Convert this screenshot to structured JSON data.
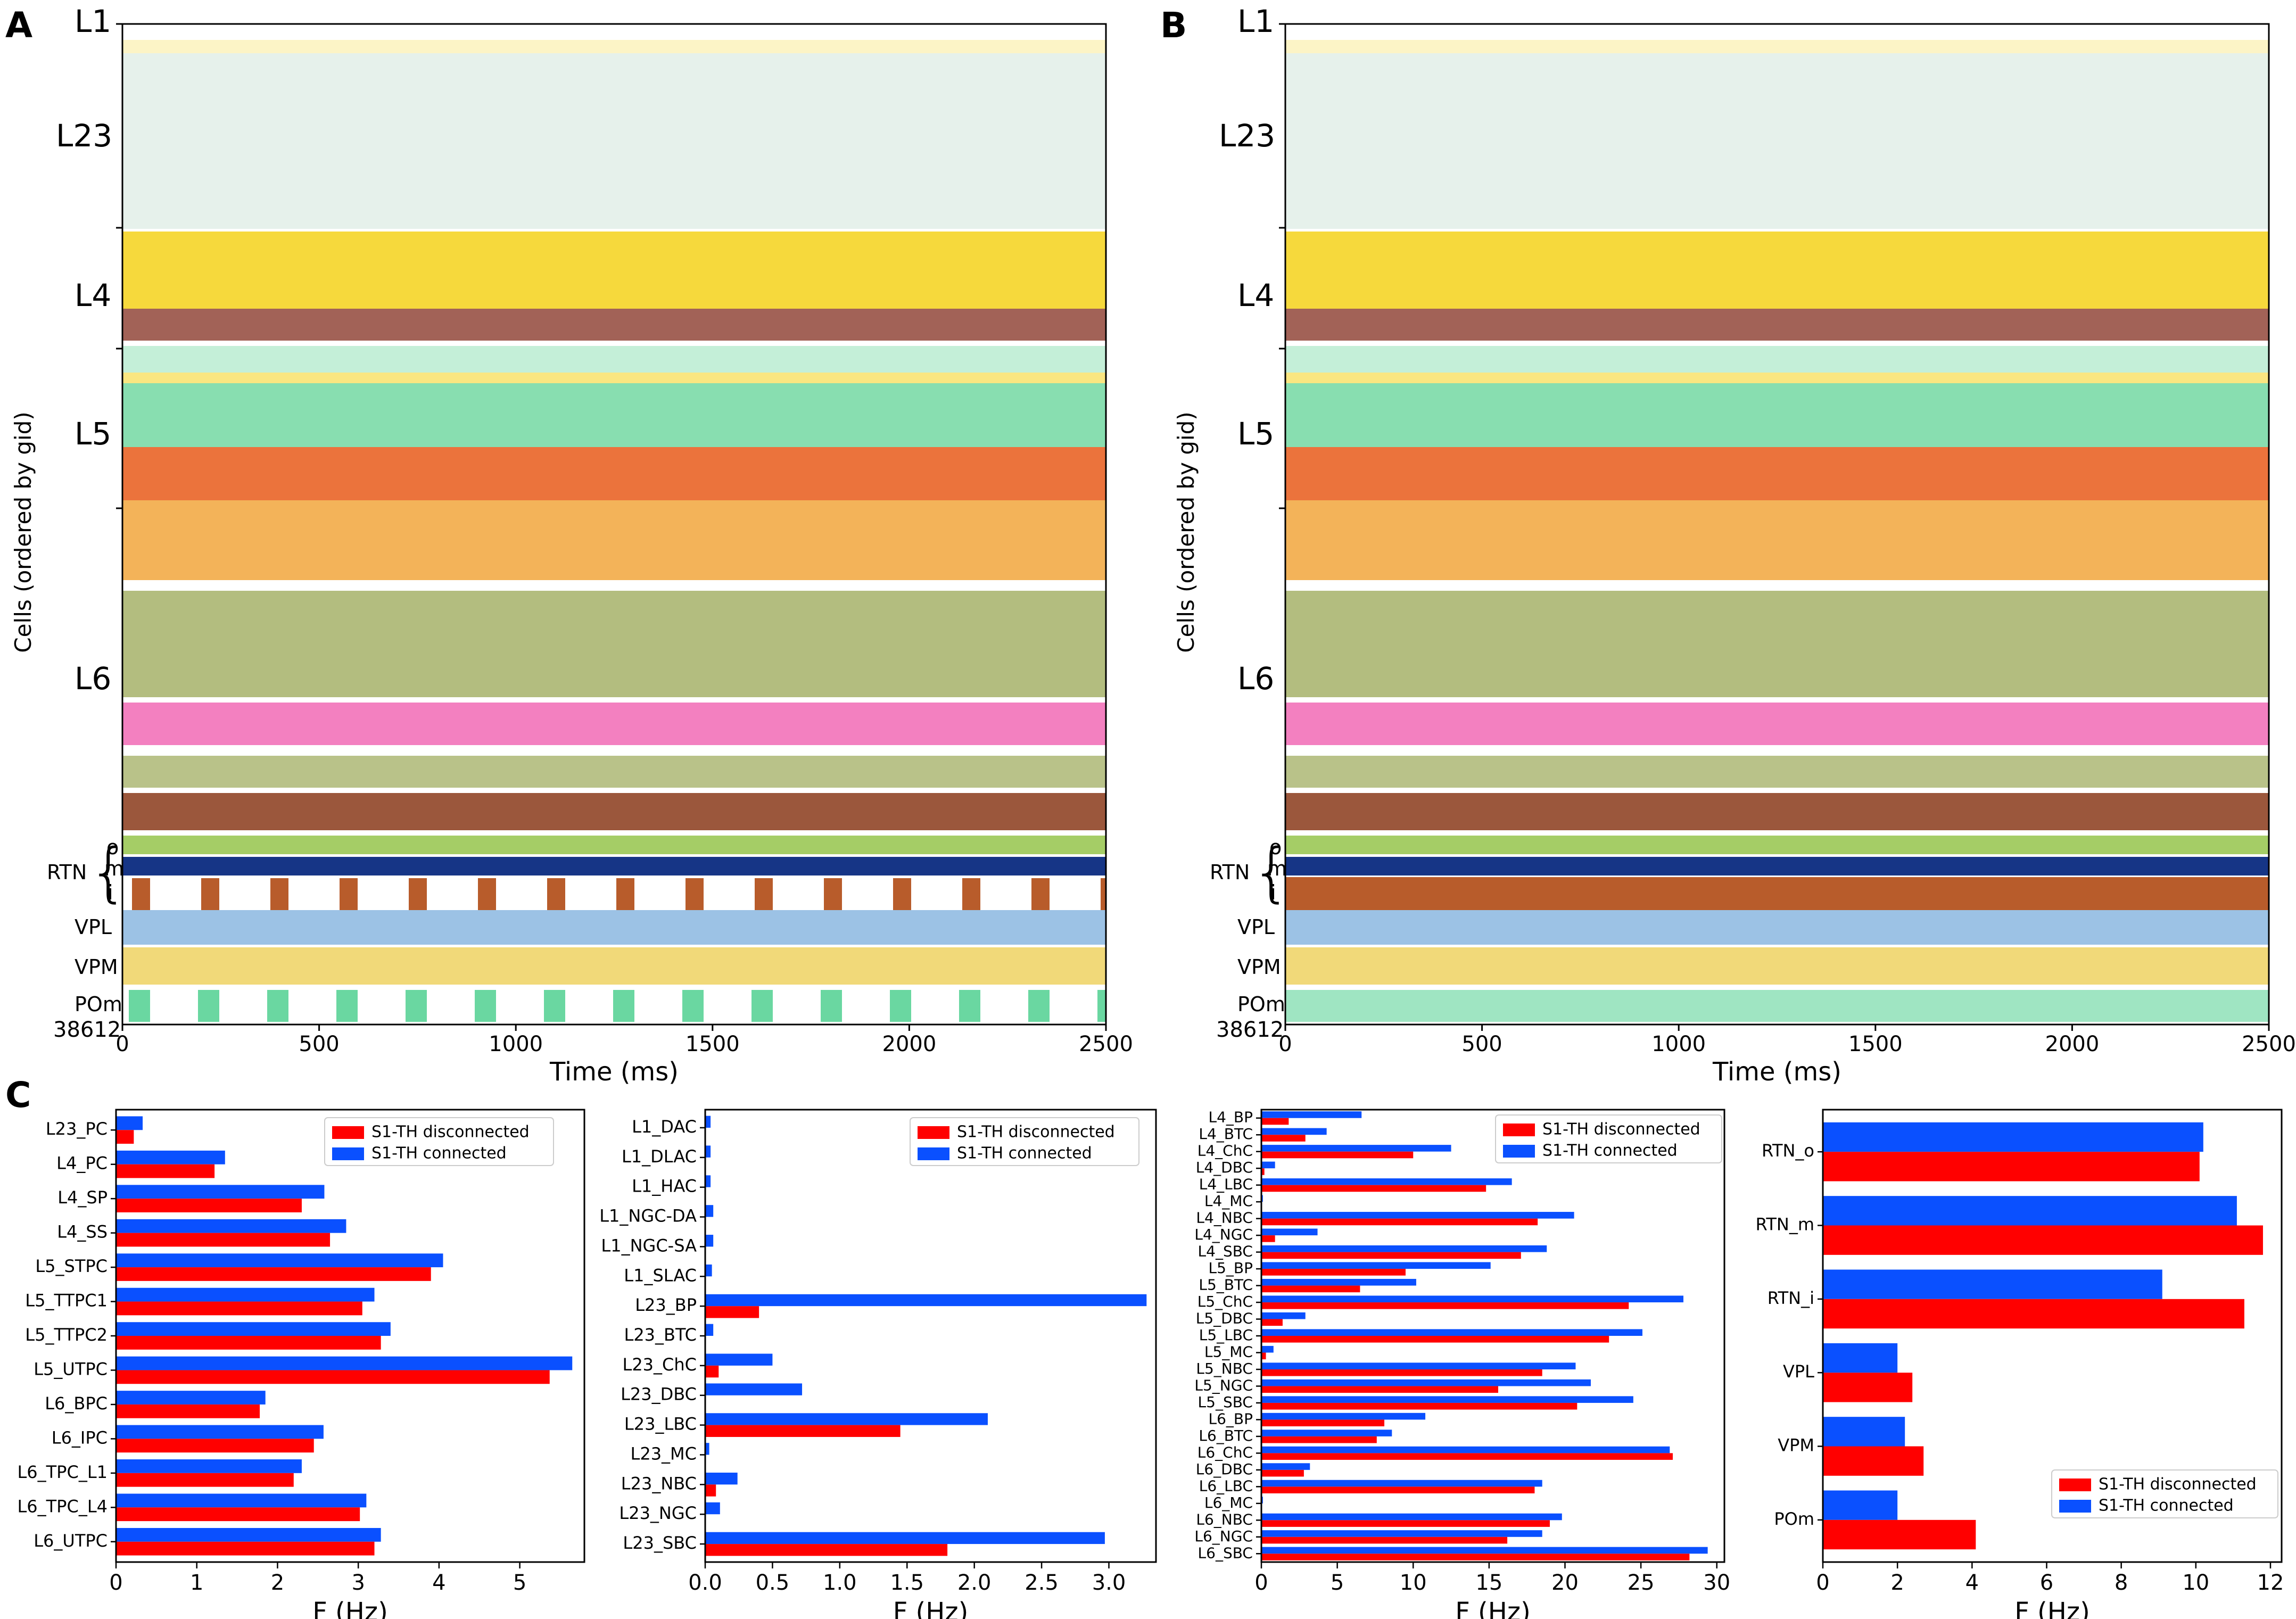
{
  "panel_letters": {
    "A": "A",
    "B": "B",
    "C": "C"
  },
  "colors": {
    "disconnected": "#ff0000",
    "connected": "#0a50ff"
  },
  "raster": {
    "ylabel": "Cells (ordered by gid)",
    "xlabel": "Time (ms)",
    "y_bottom_label": "38612",
    "layer_labels": [
      "L1",
      "L23",
      "L4",
      "L5",
      "L6"
    ],
    "thalamic_labels": {
      "rtn": "RTN",
      "sub": [
        "o",
        "m",
        "i"
      ],
      "nuclei": [
        "VPL",
        "VPM",
        "POm"
      ]
    },
    "xticks": [
      "0",
      "500",
      "1000",
      "1500",
      "2000",
      "2500"
    ],
    "xlim": [
      0,
      2500
    ],
    "ylim_max_gid": 38612,
    "band_colors": [
      "#2f8f5a",
      "#f5d21a",
      "#7a1f0f",
      "#56d08f",
      "#e85a1a",
      "#f0a030",
      "#8a9a3a",
      "#f060b0",
      "#8a3a1a",
      "#8fc040",
      "#0a2a80",
      "#b04a14",
      "#4a90d0",
      "#e8c020",
      "#50d090"
    ],
    "panels": [
      {
        "id": "A",
        "condition": "S1-TH disconnected"
      },
      {
        "id": "B",
        "condition": "S1-TH connected"
      }
    ]
  },
  "chart_data": [
    {
      "type": "bar",
      "orientation": "horizontal",
      "categories": [
        "L23_PC",
        "L4_PC",
        "L4_SP",
        "L4_SS",
        "L5_STPC",
        "L5_TTPC1",
        "L5_TTPC2",
        "L5_UTPC",
        "L6_BPC",
        "L6_IPC",
        "L6_TPC_L1",
        "L6_TPC_L4",
        "L6_UTPC"
      ],
      "series": [
        {
          "name": "S1-TH disconnected",
          "values": [
            0.22,
            1.22,
            2.3,
            2.65,
            3.9,
            3.05,
            3.28,
            5.37,
            1.78,
            2.45,
            2.2,
            3.02,
            3.2
          ]
        },
        {
          "name": "S1-TH connected",
          "values": [
            0.33,
            1.35,
            2.58,
            2.85,
            4.05,
            3.2,
            3.4,
            5.65,
            1.85,
            2.57,
            2.3,
            3.1,
            3.28
          ]
        }
      ],
      "xlabel": "F (Hz)",
      "xlim": [
        0,
        5.8
      ],
      "xticks": [
        "0",
        "1",
        "2",
        "3",
        "4",
        "5"
      ],
      "xtick_values": [
        0,
        1,
        2,
        3,
        4,
        5
      ],
      "legend": "top-right"
    },
    {
      "type": "bar",
      "orientation": "horizontal",
      "categories": [
        "L1_DAC",
        "L1_DLAC",
        "L1_HAC",
        "L1_NGC-DA",
        "L1_NGC-SA",
        "L1_SLAC",
        "L23_BP",
        "L23_BTC",
        "L23_ChC",
        "L23_DBC",
        "L23_LBC",
        "L23_MC",
        "L23_NBC",
        "L23_NGC",
        "L23_SBC"
      ],
      "series": [
        {
          "name": "S1-TH disconnected",
          "values": [
            0,
            0,
            0,
            0,
            0,
            0,
            0.4,
            0,
            0.1,
            0,
            1.45,
            0,
            0.08,
            0,
            1.8
          ]
        },
        {
          "name": "S1-TH connected",
          "values": [
            0.04,
            0.04,
            0.04,
            0.06,
            0.06,
            0.05,
            3.28,
            0.06,
            0.5,
            0.72,
            2.1,
            0.03,
            0.24,
            0.11,
            2.97
          ]
        }
      ],
      "xlabel": "F (Hz)",
      "xlim": [
        0,
        3.35
      ],
      "xticks": [
        "0.0",
        "0.5",
        "1.0",
        "1.5",
        "2.0",
        "2.5",
        "3.0"
      ],
      "xtick_values": [
        0,
        0.5,
        1.0,
        1.5,
        2.0,
        2.5,
        3.0
      ],
      "legend": "top-right"
    },
    {
      "type": "bar",
      "orientation": "horizontal",
      "categories": [
        "L4_BP",
        "L4_BTC",
        "L4_ChC",
        "L4_DBC",
        "L4_LBC",
        "L4_MC",
        "L4_NBC",
        "L4_NGC",
        "L4_SBC",
        "L5_BP",
        "L5_BTC",
        "L5_ChC",
        "L5_DBC",
        "L5_LBC",
        "L5_MC",
        "L5_NBC",
        "L5_NGC",
        "L5_SBC",
        "L6_BP",
        "L6_BTC",
        "L6_ChC",
        "L6_DBC",
        "L6_LBC",
        "L6_MC",
        "L6_NBC",
        "L6_NGC",
        "L6_SBC"
      ],
      "series": [
        {
          "name": "S1-TH disconnected",
          "values": [
            1.8,
            2.9,
            10.0,
            0.2,
            14.8,
            0,
            18.2,
            0.9,
            17.1,
            9.5,
            6.5,
            24.2,
            1.4,
            22.9,
            0.3,
            18.5,
            15.6,
            20.8,
            8.1,
            7.6,
            27.1,
            2.8,
            18.0,
            0,
            19.0,
            16.2,
            28.2
          ]
        },
        {
          "name": "S1-TH connected",
          "values": [
            6.6,
            4.3,
            12.5,
            0.9,
            16.5,
            0.1,
            20.6,
            3.7,
            18.8,
            15.1,
            10.2,
            27.8,
            2.9,
            25.1,
            0.8,
            20.7,
            21.7,
            24.5,
            10.8,
            8.6,
            26.9,
            3.2,
            18.5,
            0.1,
            19.8,
            18.5,
            29.4
          ]
        }
      ],
      "xlabel": "F (Hz)",
      "xlim": [
        0,
        30.5
      ],
      "xticks": [
        "0",
        "5",
        "10",
        "15",
        "20",
        "25",
        "30"
      ],
      "xtick_values": [
        0,
        5,
        10,
        15,
        20,
        25,
        30
      ],
      "legend": "top-right"
    },
    {
      "type": "bar",
      "orientation": "horizontal",
      "categories": [
        "RTN_o",
        "RTN_m",
        "RTN_i",
        "VPL",
        "VPM",
        "POm"
      ],
      "series": [
        {
          "name": "S1-TH disconnected",
          "values": [
            10.1,
            11.8,
            11.3,
            2.4,
            2.7,
            4.1
          ]
        },
        {
          "name": "S1-TH connected",
          "values": [
            10.2,
            11.1,
            9.1,
            2.0,
            2.2,
            2.0
          ]
        }
      ],
      "xlabel": "F (Hz)",
      "xlim": [
        0,
        12.3
      ],
      "xticks": [
        "0",
        "2",
        "4",
        "6",
        "8",
        "10",
        "12"
      ],
      "xtick_values": [
        0,
        2,
        4,
        6,
        8,
        10,
        12
      ],
      "legend": "bottom-right"
    }
  ]
}
